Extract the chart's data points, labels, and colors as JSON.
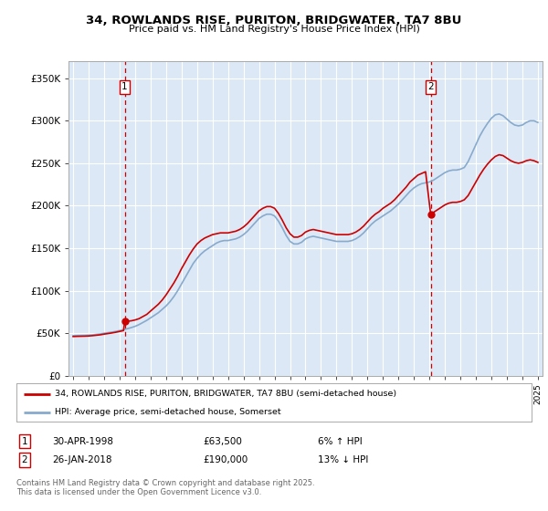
{
  "title": "34, ROWLANDS RISE, PURITON, BRIDGWATER, TA7 8BU",
  "subtitle": "Price paid vs. HM Land Registry's House Price Index (HPI)",
  "ylim": [
    0,
    370000
  ],
  "yticks": [
    0,
    50000,
    100000,
    150000,
    200000,
    250000,
    300000,
    350000
  ],
  "ytick_labels": [
    "£0",
    "£50K",
    "£100K",
    "£150K",
    "£200K",
    "£250K",
    "£300K",
    "£350K"
  ],
  "xlim_start": 1994.7,
  "xlim_end": 2025.3,
  "plot_bg_color": "#dce8f5",
  "grid_color": "#ffffff",
  "property_color": "#cc0000",
  "hpi_color": "#88aacc",
  "vline_color": "#cc0000",
  "marker1_x": 1998.33,
  "marker1_y": 63500,
  "marker1_label": "1",
  "marker2_x": 2018.08,
  "marker2_y": 190000,
  "marker2_label": "2",
  "legend1_label": "34, ROWLANDS RISE, PURITON, BRIDGWATER, TA7 8BU (semi-detached house)",
  "legend2_label": "HPI: Average price, semi-detached house, Somerset",
  "note1_label": "1",
  "note1_date": "30-APR-1998",
  "note1_price": "£63,500",
  "note1_change": "6% ↑ HPI",
  "note2_label": "2",
  "note2_date": "26-JAN-2018",
  "note2_price": "£190,000",
  "note2_change": "13% ↓ HPI",
  "footer": "Contains HM Land Registry data © Crown copyright and database right 2025.\nThis data is licensed under the Open Government Licence v3.0.",
  "hpi_data": [
    [
      1995.0,
      47000
    ],
    [
      1995.25,
      47200
    ],
    [
      1995.5,
      47300
    ],
    [
      1995.75,
      47400
    ],
    [
      1996.0,
      47600
    ],
    [
      1996.25,
      48000
    ],
    [
      1996.5,
      48500
    ],
    [
      1996.75,
      49000
    ],
    [
      1997.0,
      49800
    ],
    [
      1997.25,
      50500
    ],
    [
      1997.5,
      51200
    ],
    [
      1997.75,
      52000
    ],
    [
      1998.0,
      53000
    ],
    [
      1998.25,
      54000
    ],
    [
      1998.5,
      55200
    ],
    [
      1998.75,
      56500
    ],
    [
      1999.0,
      58000
    ],
    [
      1999.25,
      60000
    ],
    [
      1999.5,
      62500
    ],
    [
      1999.75,
      65000
    ],
    [
      2000.0,
      68000
    ],
    [
      2000.25,
      71000
    ],
    [
      2000.5,
      74000
    ],
    [
      2000.75,
      78000
    ],
    [
      2001.0,
      82000
    ],
    [
      2001.25,
      87000
    ],
    [
      2001.5,
      93000
    ],
    [
      2001.75,
      100000
    ],
    [
      2002.0,
      108000
    ],
    [
      2002.25,
      116000
    ],
    [
      2002.5,
      124000
    ],
    [
      2002.75,
      132000
    ],
    [
      2003.0,
      138000
    ],
    [
      2003.25,
      143000
    ],
    [
      2003.5,
      147000
    ],
    [
      2003.75,
      150000
    ],
    [
      2004.0,
      153000
    ],
    [
      2004.25,
      156000
    ],
    [
      2004.5,
      158000
    ],
    [
      2004.75,
      159000
    ],
    [
      2005.0,
      159000
    ],
    [
      2005.25,
      160000
    ],
    [
      2005.5,
      161000
    ],
    [
      2005.75,
      163000
    ],
    [
      2006.0,
      166000
    ],
    [
      2006.25,
      170000
    ],
    [
      2006.5,
      175000
    ],
    [
      2006.75,
      180000
    ],
    [
      2007.0,
      185000
    ],
    [
      2007.25,
      188000
    ],
    [
      2007.5,
      190000
    ],
    [
      2007.75,
      190000
    ],
    [
      2008.0,
      188000
    ],
    [
      2008.25,
      182000
    ],
    [
      2008.5,
      174000
    ],
    [
      2008.75,
      165000
    ],
    [
      2009.0,
      158000
    ],
    [
      2009.25,
      155000
    ],
    [
      2009.5,
      155000
    ],
    [
      2009.75,
      157000
    ],
    [
      2010.0,
      161000
    ],
    [
      2010.25,
      163000
    ],
    [
      2010.5,
      164000
    ],
    [
      2010.75,
      163000
    ],
    [
      2011.0,
      162000
    ],
    [
      2011.25,
      161000
    ],
    [
      2011.5,
      160000
    ],
    [
      2011.75,
      159000
    ],
    [
      2012.0,
      158000
    ],
    [
      2012.25,
      158000
    ],
    [
      2012.5,
      158000
    ],
    [
      2012.75,
      158000
    ],
    [
      2013.0,
      159000
    ],
    [
      2013.25,
      161000
    ],
    [
      2013.5,
      164000
    ],
    [
      2013.75,
      168000
    ],
    [
      2014.0,
      173000
    ],
    [
      2014.25,
      178000
    ],
    [
      2014.5,
      182000
    ],
    [
      2014.75,
      185000
    ],
    [
      2015.0,
      188000
    ],
    [
      2015.25,
      191000
    ],
    [
      2015.5,
      194000
    ],
    [
      2015.75,
      198000
    ],
    [
      2016.0,
      202000
    ],
    [
      2016.25,
      207000
    ],
    [
      2016.5,
      212000
    ],
    [
      2016.75,
      217000
    ],
    [
      2017.0,
      221000
    ],
    [
      2017.25,
      224000
    ],
    [
      2017.5,
      226000
    ],
    [
      2017.75,
      227000
    ],
    [
      2018.0,
      228000
    ],
    [
      2018.25,
      230000
    ],
    [
      2018.5,
      233000
    ],
    [
      2018.75,
      236000
    ],
    [
      2019.0,
      239000
    ],
    [
      2019.25,
      241000
    ],
    [
      2019.5,
      242000
    ],
    [
      2019.75,
      242000
    ],
    [
      2020.0,
      243000
    ],
    [
      2020.25,
      245000
    ],
    [
      2020.5,
      252000
    ],
    [
      2020.75,
      262000
    ],
    [
      2021.0,
      272000
    ],
    [
      2021.25,
      282000
    ],
    [
      2021.5,
      290000
    ],
    [
      2021.75,
      297000
    ],
    [
      2022.0,
      303000
    ],
    [
      2022.25,
      307000
    ],
    [
      2022.5,
      308000
    ],
    [
      2022.75,
      306000
    ],
    [
      2023.0,
      302000
    ],
    [
      2023.25,
      298000
    ],
    [
      2023.5,
      295000
    ],
    [
      2023.75,
      294000
    ],
    [
      2024.0,
      295000
    ],
    [
      2024.25,
      298000
    ],
    [
      2024.5,
      300000
    ],
    [
      2024.75,
      300000
    ],
    [
      2025.0,
      298000
    ]
  ],
  "property_data": [
    [
      1995.0,
      46000
    ],
    [
      1995.25,
      46200
    ],
    [
      1995.5,
      46300
    ],
    [
      1995.75,
      46400
    ],
    [
      1996.0,
      46600
    ],
    [
      1996.25,
      47000
    ],
    [
      1996.5,
      47500
    ],
    [
      1996.75,
      48000
    ],
    [
      1997.0,
      48800
    ],
    [
      1997.25,
      49500
    ],
    [
      1997.5,
      50200
    ],
    [
      1997.75,
      51000
    ],
    [
      1998.0,
      52000
    ],
    [
      1998.25,
      53000
    ],
    [
      1998.33,
      63500
    ],
    [
      1998.5,
      64000
    ],
    [
      1998.75,
      64500
    ],
    [
      1999.0,
      65500
    ],
    [
      1999.25,
      67000
    ],
    [
      1999.5,
      69500
    ],
    [
      1999.75,
      72000
    ],
    [
      2000.0,
      76000
    ],
    [
      2000.25,
      80000
    ],
    [
      2000.5,
      84000
    ],
    [
      2000.75,
      89000
    ],
    [
      2001.0,
      95000
    ],
    [
      2001.25,
      102000
    ],
    [
      2001.5,
      109000
    ],
    [
      2001.75,
      117000
    ],
    [
      2002.0,
      126000
    ],
    [
      2002.25,
      134000
    ],
    [
      2002.5,
      142000
    ],
    [
      2002.75,
      149000
    ],
    [
      2003.0,
      155000
    ],
    [
      2003.25,
      159000
    ],
    [
      2003.5,
      162000
    ],
    [
      2003.75,
      164000
    ],
    [
      2004.0,
      166000
    ],
    [
      2004.25,
      167000
    ],
    [
      2004.5,
      168000
    ],
    [
      2004.75,
      168000
    ],
    [
      2005.0,
      168000
    ],
    [
      2005.25,
      169000
    ],
    [
      2005.5,
      170000
    ],
    [
      2005.75,
      172000
    ],
    [
      2006.0,
      175000
    ],
    [
      2006.25,
      179000
    ],
    [
      2006.5,
      184000
    ],
    [
      2006.75,
      189000
    ],
    [
      2007.0,
      194000
    ],
    [
      2007.25,
      197000
    ],
    [
      2007.5,
      199000
    ],
    [
      2007.75,
      199000
    ],
    [
      2008.0,
      197000
    ],
    [
      2008.25,
      191000
    ],
    [
      2008.5,
      183000
    ],
    [
      2008.75,
      174000
    ],
    [
      2009.0,
      167000
    ],
    [
      2009.25,
      163000
    ],
    [
      2009.5,
      163000
    ],
    [
      2009.75,
      165000
    ],
    [
      2010.0,
      169000
    ],
    [
      2010.25,
      171000
    ],
    [
      2010.5,
      172000
    ],
    [
      2010.75,
      171000
    ],
    [
      2011.0,
      170000
    ],
    [
      2011.25,
      169000
    ],
    [
      2011.5,
      168000
    ],
    [
      2011.75,
      167000
    ],
    [
      2012.0,
      166000
    ],
    [
      2012.25,
      166000
    ],
    [
      2012.5,
      166000
    ],
    [
      2012.75,
      166000
    ],
    [
      2013.0,
      167000
    ],
    [
      2013.25,
      169000
    ],
    [
      2013.5,
      172000
    ],
    [
      2013.75,
      176000
    ],
    [
      2014.0,
      181000
    ],
    [
      2014.25,
      186000
    ],
    [
      2014.5,
      190000
    ],
    [
      2014.75,
      193000
    ],
    [
      2015.0,
      197000
    ],
    [
      2015.25,
      200000
    ],
    [
      2015.5,
      203000
    ],
    [
      2015.75,
      207000
    ],
    [
      2016.0,
      212000
    ],
    [
      2016.25,
      217000
    ],
    [
      2016.5,
      222000
    ],
    [
      2016.75,
      228000
    ],
    [
      2017.0,
      232000
    ],
    [
      2017.25,
      236000
    ],
    [
      2017.5,
      238000
    ],
    [
      2017.75,
      240000
    ],
    [
      2018.08,
      190000
    ],
    [
      2018.5,
      195000
    ],
    [
      2018.75,
      198000
    ],
    [
      2019.0,
      201000
    ],
    [
      2019.25,
      203000
    ],
    [
      2019.5,
      204000
    ],
    [
      2019.75,
      204000
    ],
    [
      2020.0,
      205000
    ],
    [
      2020.25,
      207000
    ],
    [
      2020.5,
      212000
    ],
    [
      2020.75,
      220000
    ],
    [
      2021.0,
      228000
    ],
    [
      2021.25,
      236000
    ],
    [
      2021.5,
      243000
    ],
    [
      2021.75,
      249000
    ],
    [
      2022.0,
      254000
    ],
    [
      2022.25,
      258000
    ],
    [
      2022.5,
      260000
    ],
    [
      2022.75,
      259000
    ],
    [
      2023.0,
      256000
    ],
    [
      2023.25,
      253000
    ],
    [
      2023.5,
      251000
    ],
    [
      2023.75,
      250000
    ],
    [
      2024.0,
      251000
    ],
    [
      2024.25,
      253000
    ],
    [
      2024.5,
      254000
    ],
    [
      2024.75,
      253000
    ],
    [
      2025.0,
      251000
    ]
  ]
}
